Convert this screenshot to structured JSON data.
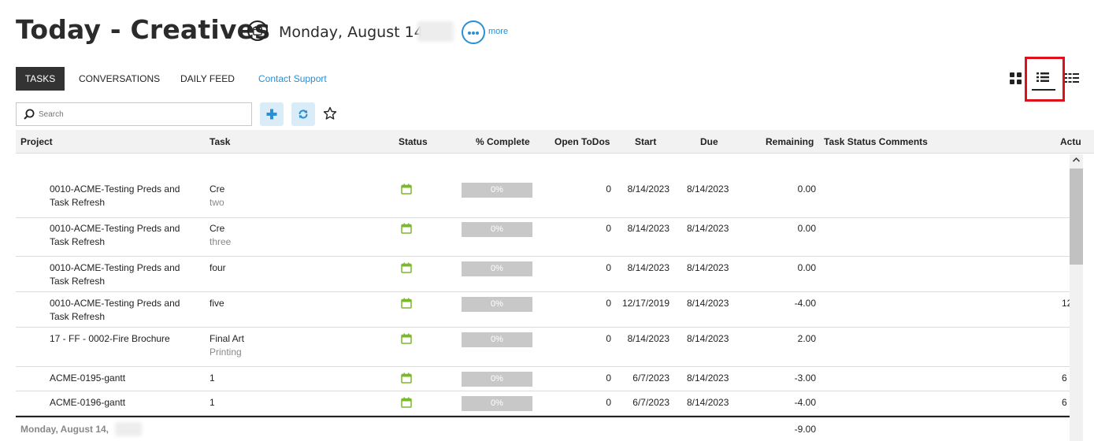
{
  "header": {
    "title": "Today - Creatives",
    "date": "Monday, August 14,",
    "more_label": "more"
  },
  "tabs": [
    {
      "label": "TASKS"
    },
    {
      "label": "CONVERSATIONS"
    },
    {
      "label": "DAILY FEED"
    },
    {
      "label": "Contact Support"
    }
  ],
  "search": {
    "placeholder": "Search",
    "value": ""
  },
  "table": {
    "columns": [
      "Project",
      "Task",
      "Status",
      "% Complete",
      "Open ToDos",
      "Start",
      "Due",
      "Remaining",
      "Task Status Comments",
      "Actu"
    ],
    "rows": [
      {
        "project_line1": "0010-ACME-Testing Preds and",
        "project_line2": "Task Refresh",
        "task": "Cre",
        "task_sub": "two",
        "complete": "0%",
        "todos": "0",
        "start": "8/14/2023",
        "due": "8/14/2023",
        "remaining": "0.00",
        "actual": ""
      },
      {
        "project_line1": "0010-ACME-Testing Preds and",
        "project_line2": "Task Refresh",
        "task": "Cre",
        "task_sub": "three",
        "complete": "0%",
        "todos": "0",
        "start": "8/14/2023",
        "due": "8/14/2023",
        "remaining": "0.00",
        "actual": ""
      },
      {
        "project_line1": "0010-ACME-Testing Preds and",
        "project_line2": "Task Refresh",
        "task": "four",
        "task_sub": "",
        "complete": "0%",
        "todos": "0",
        "start": "8/14/2023",
        "due": "8/14/2023",
        "remaining": "0.00",
        "actual": ""
      },
      {
        "project_line1": "0010-ACME-Testing Preds and",
        "project_line2": "Task Refresh",
        "task": "five",
        "task_sub": "",
        "complete": "0%",
        "todos": "0",
        "start": "12/17/2019",
        "due": "8/14/2023",
        "remaining": "-4.00",
        "actual": "12"
      },
      {
        "project_line1": "17 - FF - 0002-Fire Brochure",
        "project_line2": "",
        "task": "Final Art",
        "task_sub": "Printing",
        "complete": "0%",
        "todos": "0",
        "start": "8/14/2023",
        "due": "8/14/2023",
        "remaining": "2.00",
        "actual": ""
      },
      {
        "project_line1": "ACME-0195-gantt",
        "project_line2": "",
        "task": "1",
        "task_sub": "",
        "complete": "0%",
        "todos": "0",
        "start": "6/7/2023",
        "due": "8/14/2023",
        "remaining": "-3.00",
        "actual": "6"
      },
      {
        "project_line1": "ACME-0196-gantt",
        "project_line2": "",
        "task": "1",
        "task_sub": "",
        "complete": "0%",
        "todos": "0",
        "start": "6/7/2023",
        "due": "8/14/2023",
        "remaining": "-4.00",
        "actual": "6"
      }
    ],
    "total": {
      "label": "Monday, August 14,",
      "remaining": "-9.00"
    }
  },
  "colors": {
    "accent": "#2a8fd4",
    "status_icon": "#7ab929",
    "highlight": "#e0101a",
    "progress_bg": "#c8c8c8"
  },
  "icons": {
    "calendar": "calendar-icon",
    "more": "more-dots-icon",
    "grid_view": "grid-view-icon",
    "list_view": "list-view-icon",
    "detail_view": "detail-list-icon",
    "search": "search-icon",
    "add": "plus-icon",
    "refresh": "refresh-icon",
    "favorite": "star-icon",
    "status": "calendar-status-icon"
  }
}
